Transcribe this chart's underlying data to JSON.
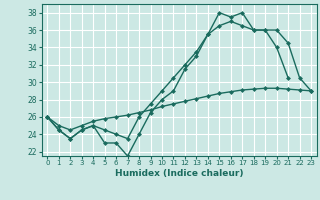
{
  "xlabel": "Humidex (Indice chaleur)",
  "bg_color": "#cce8e4",
  "grid_color": "#ffffff",
  "line_color": "#1a6b5e",
  "xlim": [
    -0.5,
    23.5
  ],
  "ylim": [
    21.5,
    39.0
  ],
  "yticks": [
    22,
    24,
    26,
    28,
    30,
    32,
    34,
    36,
    38
  ],
  "xticks": [
    0,
    1,
    2,
    3,
    4,
    5,
    6,
    7,
    8,
    9,
    10,
    11,
    12,
    13,
    14,
    15,
    16,
    17,
    18,
    19,
    20,
    21,
    22,
    23
  ],
  "curve1_x": [
    0,
    1,
    2,
    3,
    4,
    5,
    6,
    7,
    8,
    9,
    10,
    11,
    12,
    13,
    14,
    15,
    16,
    17,
    18,
    19,
    20,
    21
  ],
  "curve1_y": [
    26.0,
    24.5,
    23.5,
    24.5,
    25.0,
    23.0,
    23.0,
    21.5,
    24.0,
    26.5,
    28.0,
    29.0,
    31.5,
    33.0,
    35.5,
    38.0,
    37.5,
    38.0,
    36.0,
    36.0,
    34.0,
    30.5
  ],
  "curve2_x": [
    0,
    1,
    2,
    3,
    4,
    5,
    6,
    7,
    8,
    9,
    10,
    11,
    12,
    13,
    14,
    15,
    16,
    17,
    18,
    19,
    20,
    21,
    22,
    23
  ],
  "curve2_y": [
    26.0,
    24.5,
    23.5,
    24.5,
    25.0,
    24.5,
    24.0,
    23.5,
    26.0,
    27.5,
    29.0,
    30.5,
    32.0,
    33.5,
    35.5,
    36.5,
    37.0,
    36.5,
    36.0,
    36.0,
    36.0,
    34.5,
    30.5,
    29.0
  ],
  "curve3_x": [
    0,
    1,
    2,
    3,
    4,
    5,
    6,
    7,
    8,
    9,
    10,
    11,
    12,
    13,
    14,
    15,
    16,
    17,
    18,
    19,
    20,
    21,
    22,
    23
  ],
  "curve3_y": [
    26.0,
    25.0,
    24.5,
    25.0,
    25.5,
    25.8,
    26.0,
    26.2,
    26.5,
    26.8,
    27.2,
    27.5,
    27.8,
    28.1,
    28.4,
    28.7,
    28.9,
    29.1,
    29.2,
    29.3,
    29.3,
    29.2,
    29.1,
    29.0
  ]
}
